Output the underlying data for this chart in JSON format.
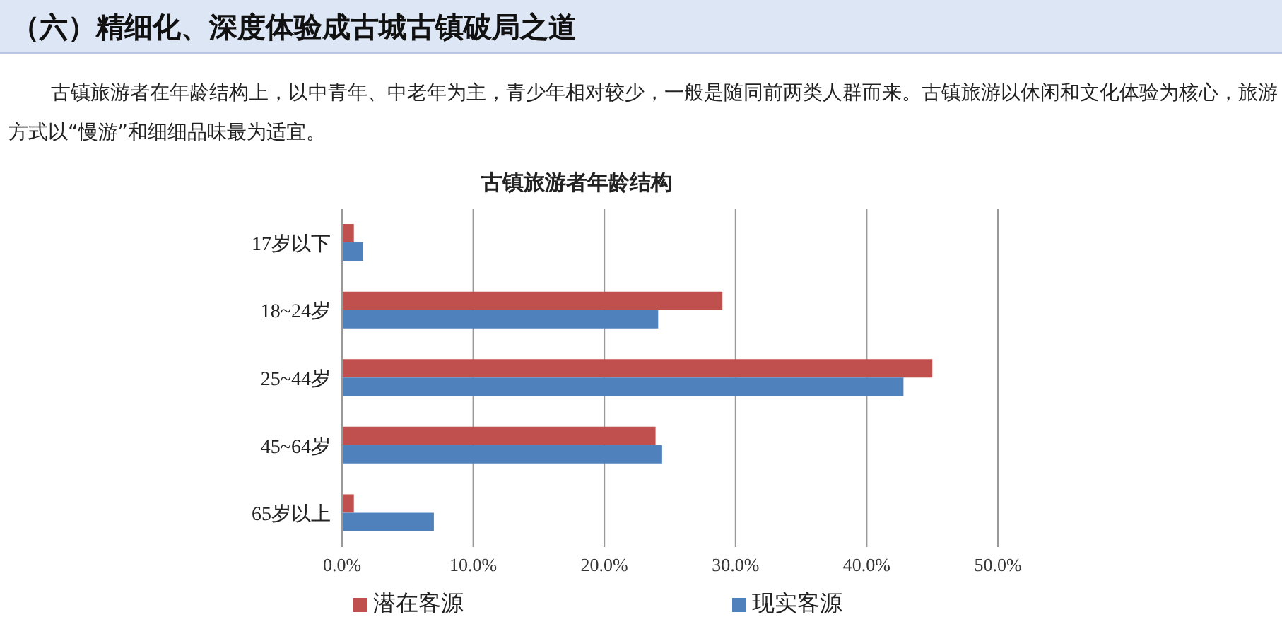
{
  "chart_data": {
    "type": "bar",
    "orientation": "horizontal",
    "title": "古镇旅游者年龄结构",
    "annotations": [
      "（六）精细化、深度体验成古城古镇破局之道",
      "古镇旅游者在年龄结构上，以中青年、中老年为主，青少年相对较少，一般是随同前两类人群而来。古镇旅游以休闲和文化体验为核心，旅游方式以“慢游”和细细品味最为适宜。"
    ],
    "categories": [
      "17岁以下",
      "18~24岁",
      "25~44岁",
      "45~64岁",
      "65岁以上"
    ],
    "series": [
      {
        "name": "潜在客源",
        "color": "#c0504d",
        "values": [
          0.9,
          29.0,
          45.0,
          23.9,
          0.9
        ]
      },
      {
        "name": "现实客源",
        "color": "#4f81bd",
        "values": [
          1.6,
          24.1,
          42.8,
          24.4,
          7.0
        ]
      }
    ],
    "xlim": [
      0,
      50
    ],
    "xticks": [
      {
        "value": 0,
        "label": "0.0%"
      },
      {
        "value": 10,
        "label": "10.0%"
      },
      {
        "value": 20,
        "label": "20.0%"
      },
      {
        "value": 30,
        "label": "30.0%"
      },
      {
        "value": 40,
        "label": "40.0%"
      },
      {
        "value": 50,
        "label": "50.0%"
      }
    ],
    "grid": "x",
    "legend": "bottom"
  }
}
